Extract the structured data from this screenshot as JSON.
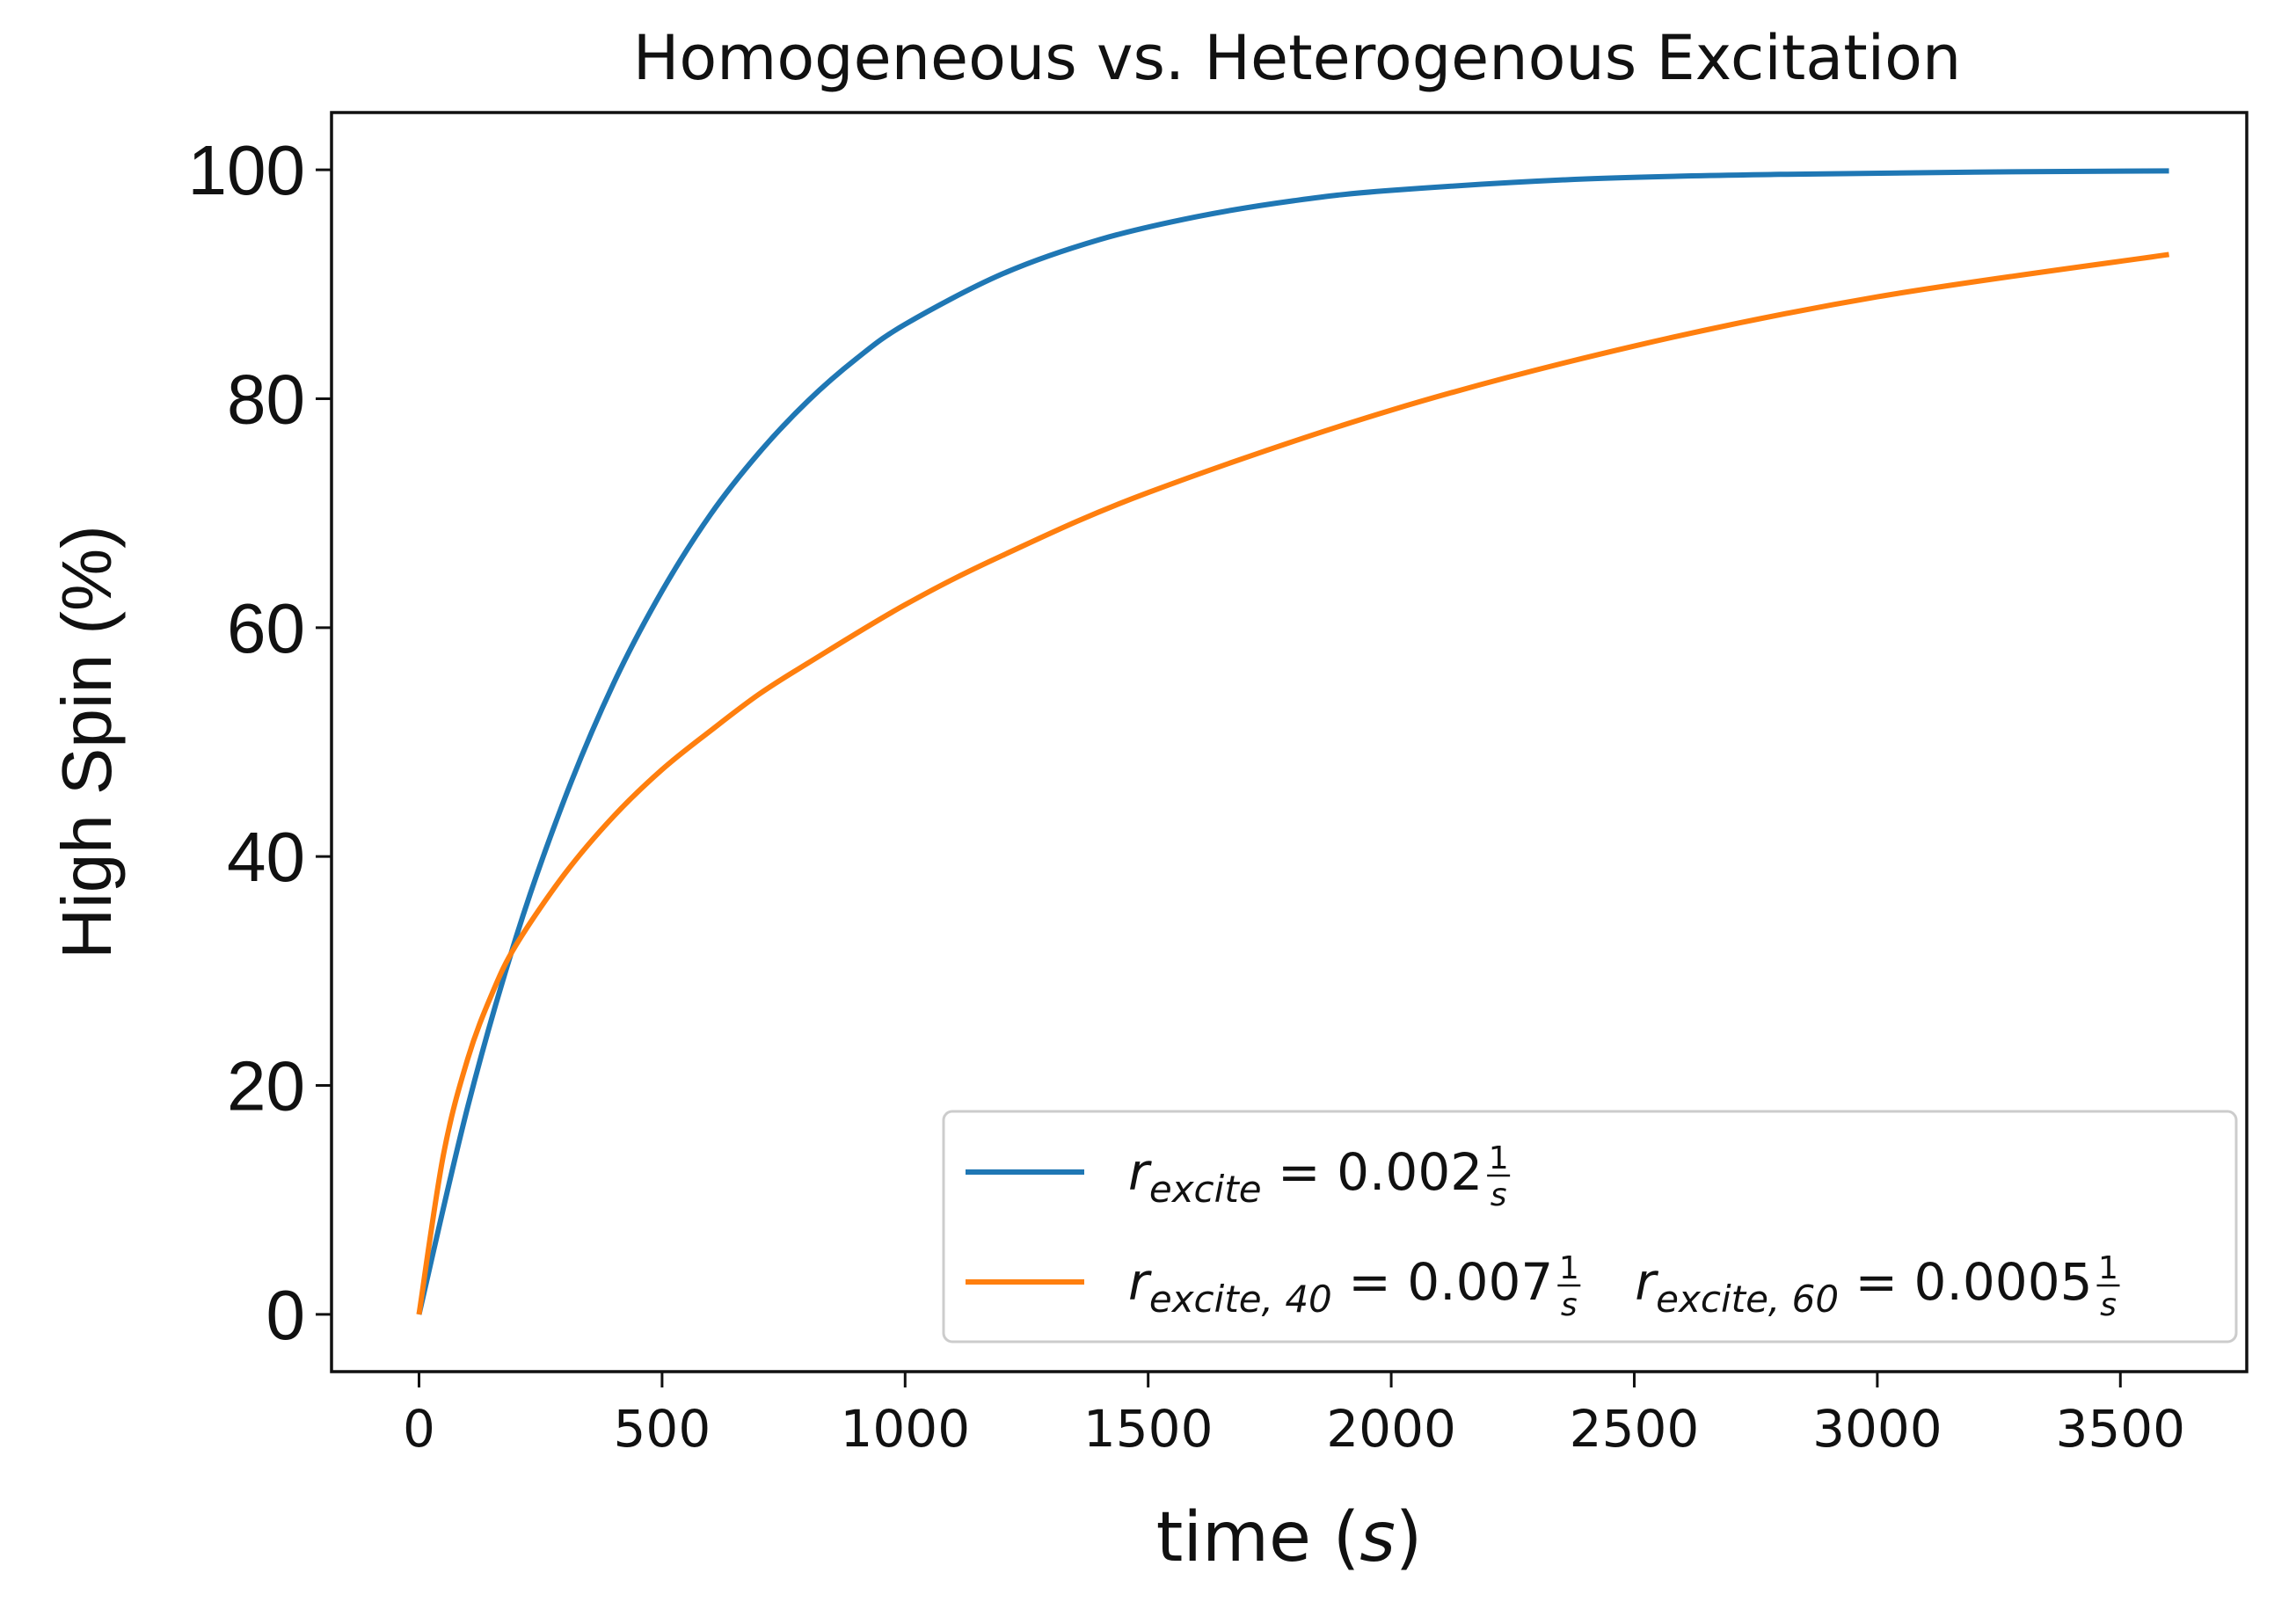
{
  "chart_data": {
    "type": "line",
    "title": "Homogeneous vs. Heterogenous Excitation",
    "xlabel_text": "time (",
    "xlabel_unit": "s",
    "xlabel_close": ")",
    "ylabel": "High Spin (%)",
    "xlim": [
      -180,
      3760
    ],
    "ylim": [
      -5,
      105
    ],
    "xticks": [
      0,
      500,
      1000,
      1500,
      2000,
      2500,
      3000,
      3500
    ],
    "yticks": [
      0,
      20,
      40,
      60,
      80,
      100
    ],
    "legend_position": "lower right",
    "series": [
      {
        "name": "r_excite = 0.002 1/s",
        "color": "#1f77b4",
        "x": [
          0,
          100,
          200,
          300,
          400,
          500,
          600,
          700,
          800,
          900,
          1000,
          1200,
          1400,
          1600,
          1800,
          2000,
          2400,
          2800,
          3200,
          3600
        ],
        "y": [
          0,
          18.1,
          33.0,
          45.1,
          55.1,
          63.2,
          69.9,
          75.3,
          79.8,
          83.5,
          86.5,
          90.9,
          93.9,
          95.9,
          97.3,
          98.2,
          99.2,
          99.6,
          99.8,
          99.9
        ]
      },
      {
        "name": "r_excite,40 = 0.007 1/s   r_excite,60 = 0.0005 1/s",
        "color": "#ff7f0e",
        "x": [
          0,
          50,
          100,
          150,
          200,
          300,
          400,
          500,
          600,
          700,
          800,
          1000,
          1200,
          1500,
          2000,
          2500,
          3000,
          3600
        ],
        "y": [
          0,
          13.9,
          22.3,
          28.0,
          32.3,
          38.5,
          43.5,
          47.6,
          51.0,
          54.2,
          56.9,
          62.0,
          66.3,
          71.8,
          79.0,
          84.6,
          88.9,
          92.6
        ]
      }
    ]
  },
  "legend": {
    "items": [
      {
        "color": "#1f77b4",
        "parts": [
          {
            "r": "r",
            "sub": "excite",
            "eq": "= 0.002",
            "num": "1",
            "den": "s"
          }
        ]
      },
      {
        "color": "#ff7f0e",
        "parts": [
          {
            "r": "r",
            "sub": "excite, 40",
            "eq": "= 0.007",
            "num": "1",
            "den": "s"
          },
          {
            "r": "r",
            "sub": "excite, 60",
            "eq": "= 0.0005",
            "num": "1",
            "den": "s"
          }
        ]
      }
    ]
  }
}
